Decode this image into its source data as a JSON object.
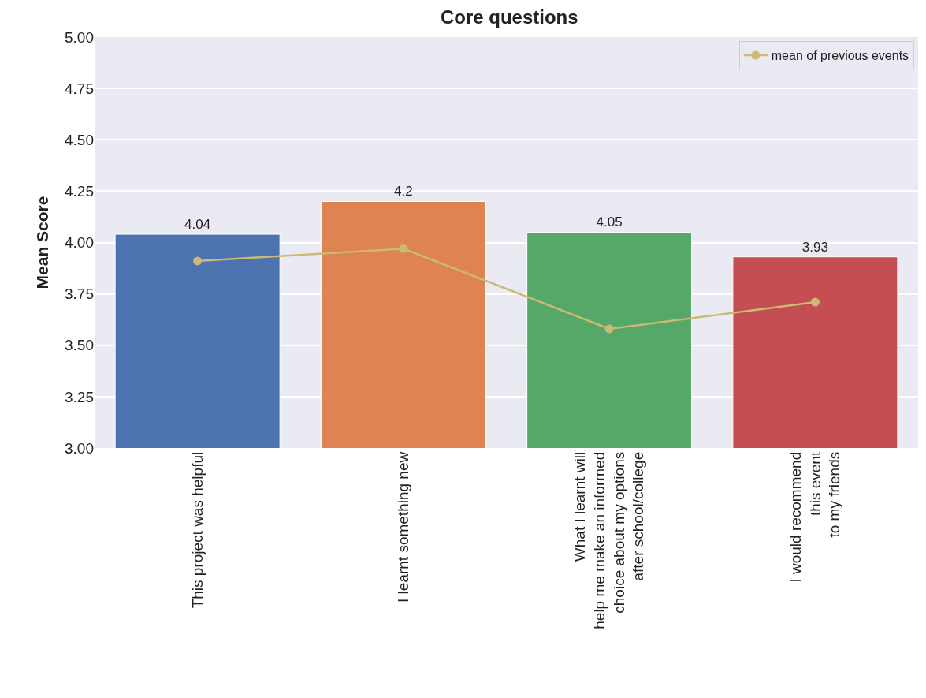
{
  "chart_data": {
    "type": "bar",
    "title": "Core questions",
    "ylabel": "Mean Score",
    "categories": [
      "This project was helpful",
      "I learnt something new",
      "What I learnt will\nhelp me make an informed\nchoice about my options\nafter school/college",
      "I would recommend\nthis event\nto my friends"
    ],
    "series": [
      {
        "colors": [
          "#4c72b0",
          "#dd8452",
          "#55a868",
          "#c44e52"
        ],
        "values": [
          4.04,
          4.2,
          4.05,
          3.93
        ],
        "value_labels": [
          "4.04",
          "4.2",
          "4.05",
          "3.93"
        ]
      },
      {
        "type": "line",
        "name": "mean of previous events",
        "color": "#ccb974",
        "values": [
          3.91,
          3.97,
          3.58,
          3.71
        ],
        "marker": "circle",
        "line_style": "solid"
      }
    ],
    "ylim": [
      3,
      5
    ],
    "yticks": [
      {
        "value": 3,
        "label": "3.00"
      },
      {
        "value": 3.25,
        "label": "3.25"
      },
      {
        "value": 3.5,
        "label": "3.50"
      },
      {
        "value": 3.75,
        "label": "3.75"
      },
      {
        "value": 4,
        "label": "4.00"
      },
      {
        "value": 4.25,
        "label": "4.25"
      },
      {
        "value": 4.5,
        "label": "4.50"
      },
      {
        "value": 4.75,
        "label": "4.75"
      },
      {
        "value": 5,
        "label": "5.00"
      }
    ],
    "grid": "y",
    "legend": "top right"
  }
}
